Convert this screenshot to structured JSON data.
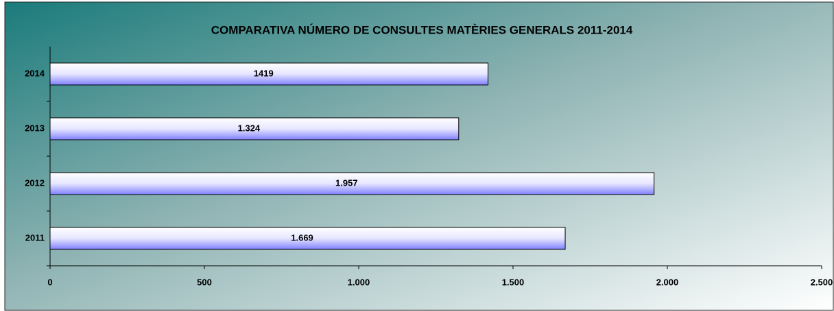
{
  "chart_data": {
    "type": "bar",
    "orientation": "horizontal",
    "title": "COMPARATIVA NÚMERO DE CONSULTES MATÈRIES GENERALS 2011-2014",
    "categories": [
      "2011",
      "2012",
      "2013",
      "2014"
    ],
    "values": [
      1669,
      1957,
      1324,
      1419
    ],
    "value_labels": [
      "1.669",
      "1.957",
      "1.324",
      "1419"
    ],
    "color": "#8080ff",
    "xlim": [
      0,
      2500
    ],
    "xticks": [
      0,
      500,
      {
        "value": 1000,
        "label": "1.000"
      },
      {
        "value": 1500,
        "label": "1.500"
      },
      {
        "value": 2000,
        "label": "2.000"
      },
      {
        "value": 2500,
        "label": "2.500"
      }
    ],
    "grid": false
  }
}
